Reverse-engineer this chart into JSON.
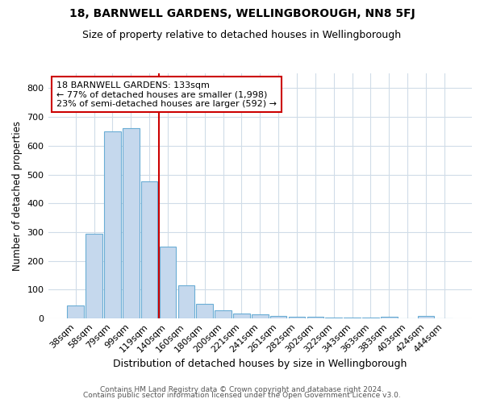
{
  "title1": "18, BARNWELL GARDENS, WELLINGBOROUGH, NN8 5FJ",
  "title2": "Size of property relative to detached houses in Wellingborough",
  "xlabel": "Distribution of detached houses by size in Wellingborough",
  "ylabel": "Number of detached properties",
  "categories": [
    "38sqm",
    "58sqm",
    "79sqm",
    "99sqm",
    "119sqm",
    "140sqm",
    "160sqm",
    "180sqm",
    "200sqm",
    "221sqm",
    "241sqm",
    "261sqm",
    "282sqm",
    "302sqm",
    "322sqm",
    "343sqm",
    "363sqm",
    "383sqm",
    "403sqm",
    "424sqm",
    "444sqm"
  ],
  "values": [
    45,
    295,
    650,
    660,
    475,
    250,
    115,
    50,
    28,
    18,
    14,
    10,
    6,
    5,
    4,
    4,
    4,
    5,
    1,
    8,
    0
  ],
  "bar_color": "#c5d8ed",
  "bar_edge_color": "#6aadd5",
  "vline_x": 5.0,
  "vline_color": "#cc0000",
  "annotation_text": "18 BARNWELL GARDENS: 133sqm\n← 77% of detached houses are smaller (1,998)\n23% of semi-detached houses are larger (592) →",
  "annotation_box_color": "white",
  "annotation_box_edge_color": "#cc0000",
  "ylim": [
    0,
    850
  ],
  "yticks": [
    0,
    100,
    200,
    300,
    400,
    500,
    600,
    700,
    800
  ],
  "background_color": "#ffffff",
  "grid_color": "#d0dce8",
  "footer1": "Contains HM Land Registry data © Crown copyright and database right 2024.",
  "footer2": "Contains public sector information licensed under the Open Government Licence v3.0.",
  "title1_fontsize": 10,
  "title2_fontsize": 9,
  "xlabel_fontsize": 9,
  "ylabel_fontsize": 8.5,
  "tick_fontsize": 8,
  "footer_fontsize": 6.5,
  "annot_fontsize": 8
}
